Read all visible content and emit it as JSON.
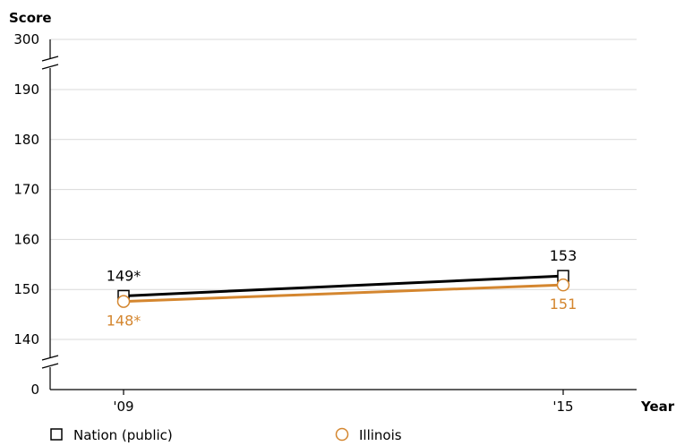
{
  "chart_data": {
    "type": "line",
    "ylabel": "Score",
    "xlabel": "Year",
    "x": [
      "'09",
      "'15"
    ],
    "y_ticks": [
      0,
      140,
      150,
      160,
      170,
      180,
      190,
      300
    ],
    "y_axis_breaks": [
      "0-140",
      "190-300"
    ],
    "grid": true,
    "legend_position": "bottom",
    "series": [
      {
        "name": "Nation (public)",
        "marker": "square",
        "color": "#000000",
        "values": [
          148.7,
          152.7
        ],
        "labels": [
          "149*",
          "153"
        ]
      },
      {
        "name": "Illinois",
        "marker": "circle",
        "color": "#d4862f",
        "values": [
          147.6,
          150.9
        ],
        "labels": [
          "148*",
          "151"
        ]
      }
    ]
  }
}
